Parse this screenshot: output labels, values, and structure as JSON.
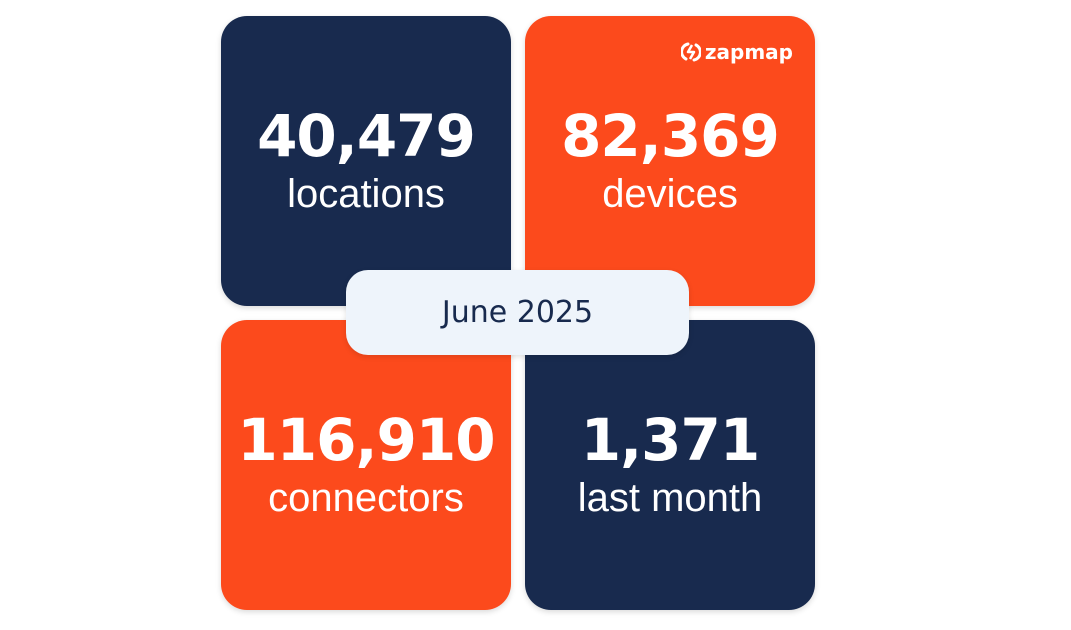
{
  "stats": [
    {
      "value": "40,479",
      "label": "locations"
    },
    {
      "value": "82,369",
      "label": "devices"
    },
    {
      "value": "116,910",
      "label": "connectors"
    },
    {
      "value": "1,371",
      "label": "last month"
    }
  ],
  "logo": {
    "text": "zapmap"
  },
  "date": "June 2025",
  "colors": {
    "navy": "#182a4e",
    "orange": "#fc4a1c",
    "pill": "#eef4fb"
  }
}
